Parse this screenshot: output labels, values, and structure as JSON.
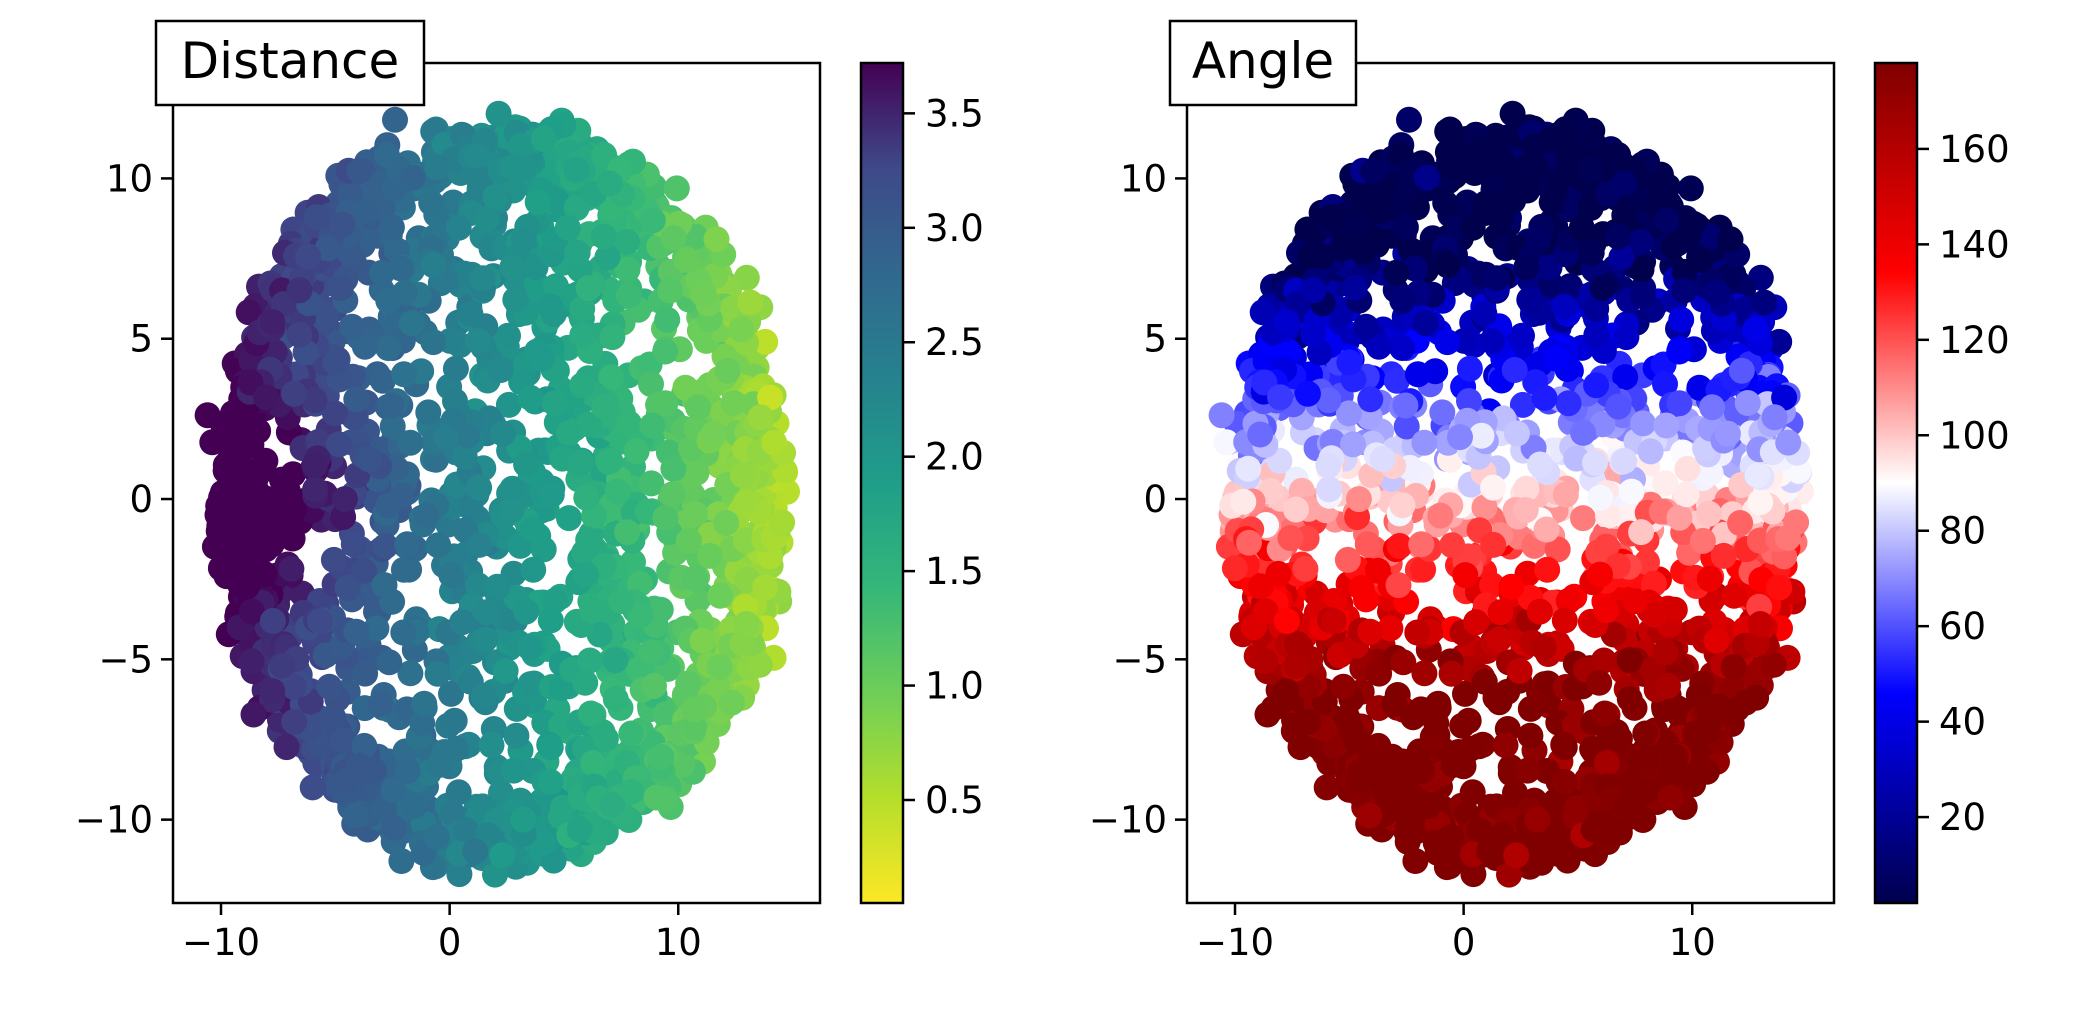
{
  "chart_data": [
    {
      "type": "scatter",
      "title": "Distance",
      "xlabel": "",
      "ylabel": "",
      "xlim": [
        -12.1,
        16.2
      ],
      "ylim": [
        -12.6,
        13.6
      ],
      "xticks": [
        -10,
        0,
        10
      ],
      "xtick_labels": [
        "−10",
        "0",
        "10"
      ],
      "yticks": [
        -10,
        -5,
        0,
        5,
        10
      ],
      "ytick_labels": [
        "−10",
        "−5",
        "0",
        "5",
        "10"
      ],
      "grid": false,
      "colormap": "viridis_r",
      "color_variable": "distance",
      "colorbar": {
        "range": [
          0.05,
          3.72
        ],
        "ticks": [
          0.5,
          1.0,
          1.5,
          2.0,
          2.5,
          3.0,
          3.5
        ],
        "tick_labels": [
          "0.5",
          "1.0",
          "1.5",
          "2.0",
          "2.5",
          "3.0",
          "3.5"
        ]
      },
      "point_cloud": {
        "shape": "ellipse",
        "center": [
          2.2,
          0.2
        ],
        "semi_axes": [
          12.3,
          11.5
        ],
        "approx_points": 2200
      }
    },
    {
      "type": "scatter",
      "title": "Angle",
      "xlabel": "",
      "ylabel": "",
      "xlim": [
        -12.1,
        16.2
      ],
      "ylim": [
        -12.6,
        13.6
      ],
      "xticks": [
        -10,
        0,
        10
      ],
      "xtick_labels": [
        "−10",
        "0",
        "10"
      ],
      "yticks": [
        -10,
        -5,
        0,
        5,
        10
      ],
      "ytick_labels": [
        "−10",
        "−5",
        "0",
        "5",
        "10"
      ],
      "grid": false,
      "colormap": "seismic",
      "color_variable": "angle",
      "colorbar": {
        "range": [
          2,
          178
        ],
        "ticks": [
          20,
          40,
          60,
          80,
          100,
          120,
          140,
          160
        ],
        "tick_labels": [
          "20",
          "40",
          "60",
          "80",
          "100",
          "120",
          "140",
          "160"
        ]
      },
      "point_cloud": {
        "shape": "ellipse",
        "center": [
          2.2,
          0.2
        ],
        "semi_axes": [
          12.3,
          11.5
        ],
        "approx_points": 2200
      }
    }
  ]
}
